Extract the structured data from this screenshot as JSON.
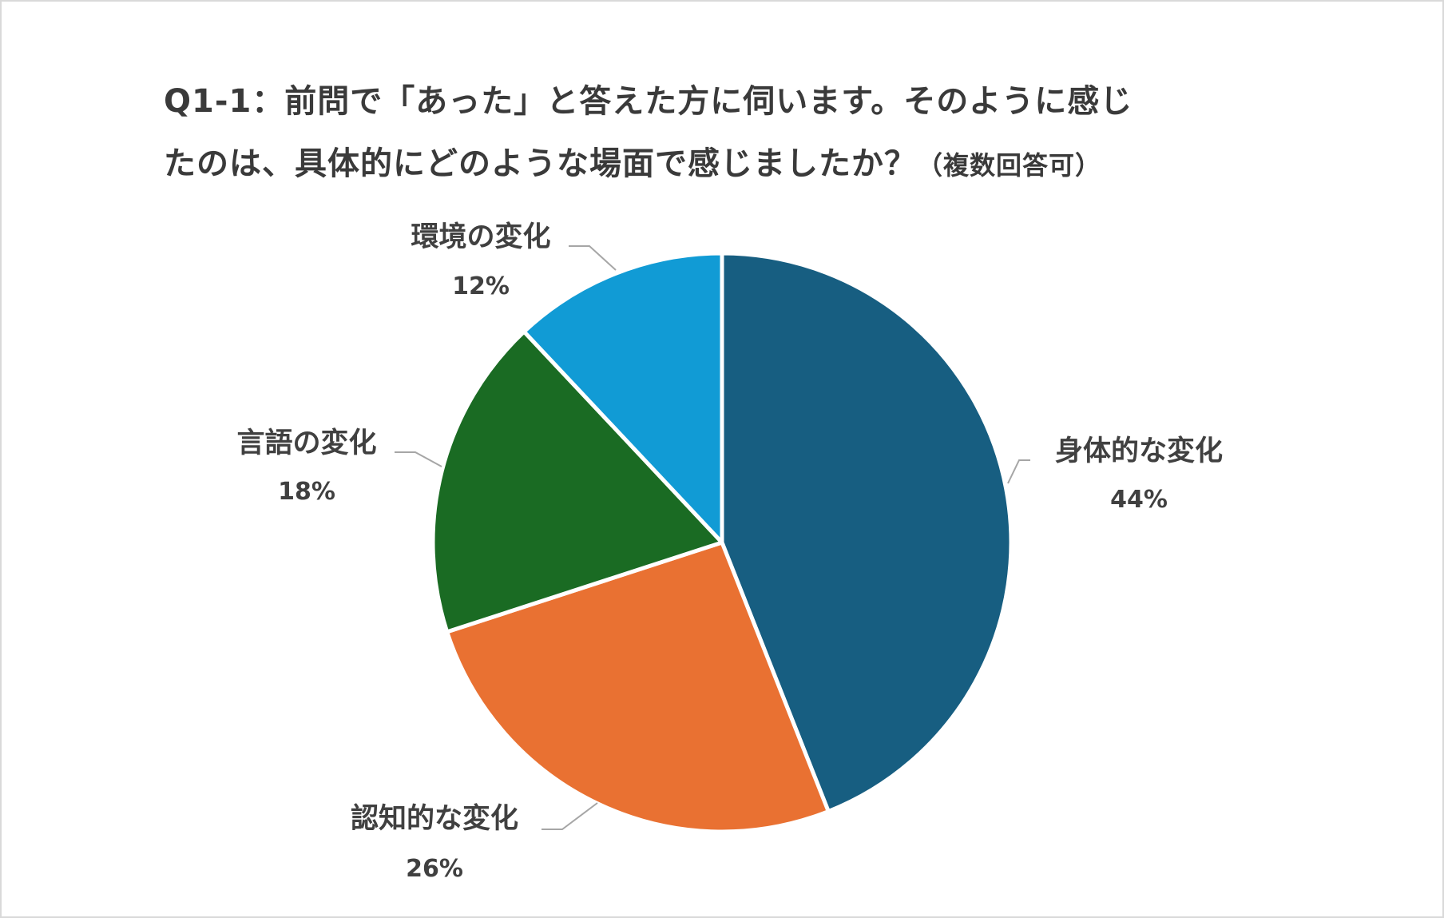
{
  "chart_data": {
    "type": "pie",
    "title": "Q1-1：前問で「あった」と答えた方に伺います。そのように感じ\nたのは、具体的にどのような場面で感じましたか？",
    "title_note": "（複数回答可）",
    "categories": [
      "身体的な変化",
      "認知的な変化",
      "言語の変化",
      "環境の変化"
    ],
    "values": [
      44,
      26,
      18,
      12
    ],
    "value_labels": [
      "44%",
      "26%",
      "18%",
      "12%"
    ],
    "colors": [
      "#175e81",
      "#e97132",
      "#1a6b23",
      "#119bd5"
    ],
    "start_angle": "12 o'clock",
    "direction": "clockwise",
    "legend": "none",
    "data_labels": "outside with leader lines"
  }
}
